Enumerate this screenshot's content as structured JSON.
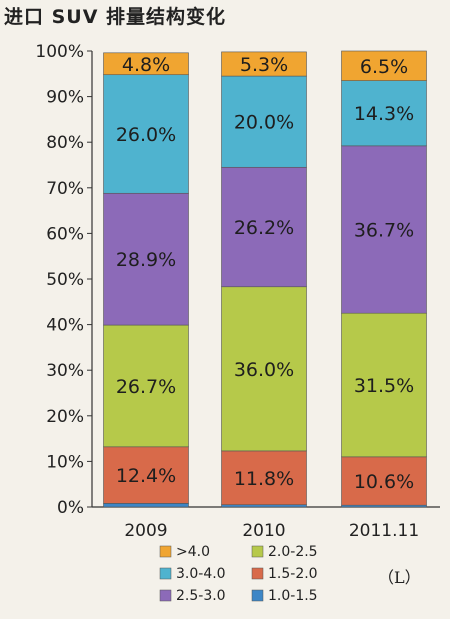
{
  "chart_data": {
    "type": "bar",
    "stacked": true,
    "title": "进口 SUV 排量结构变化",
    "categories": [
      "2009",
      "2010",
      "2011.11"
    ],
    "ylim": [
      0,
      100
    ],
    "yticks": [
      "0%",
      "10%",
      "20%",
      "30%",
      "40%",
      "50%",
      "60%",
      "70%",
      "80%",
      "90%",
      "100%"
    ],
    "unit_label": "（L）",
    "series": [
      {
        "name": "1.0-1.5",
        "color": "#3d86c6",
        "values": [
          0.8,
          0.5,
          0.4
        ],
        "labels": [
          "",
          "",
          ""
        ]
      },
      {
        "name": "1.5-2.0",
        "color": "#d86a4a",
        "values": [
          12.4,
          11.8,
          10.6
        ],
        "labels": [
          "12.4%",
          "11.8%",
          "10.6%"
        ]
      },
      {
        "name": "2.0-2.5",
        "color": "#b6c94a",
        "values": [
          26.7,
          36.0,
          31.5
        ],
        "labels": [
          "26.7%",
          "36.0%",
          "31.5%"
        ]
      },
      {
        "name": "2.5-3.0",
        "color": "#8c6ab8",
        "values": [
          28.9,
          26.2,
          36.7
        ],
        "labels": [
          "28.9%",
          "26.2%",
          "36.7%"
        ]
      },
      {
        "name": "3.0-4.0",
        "color": "#4fb3cf",
        "values": [
          26.0,
          20.0,
          14.3
        ],
        "labels": [
          "26.0%",
          "20.0%",
          "14.3%"
        ]
      },
      {
        "name": ">4.0",
        "color": "#f0a531",
        "values": [
          4.8,
          5.3,
          6.5
        ],
        "labels": [
          "4.8%",
          "5.3%",
          "6.5%"
        ]
      }
    ],
    "legend": {
      "placement": "bottom",
      "rows": [
        [
          ">4.0",
          "2.0-2.5"
        ],
        [
          "3.0-4.0",
          "1.5-2.0"
        ],
        [
          "2.5-3.0",
          "1.0-1.5"
        ]
      ]
    },
    "grid": false
  }
}
